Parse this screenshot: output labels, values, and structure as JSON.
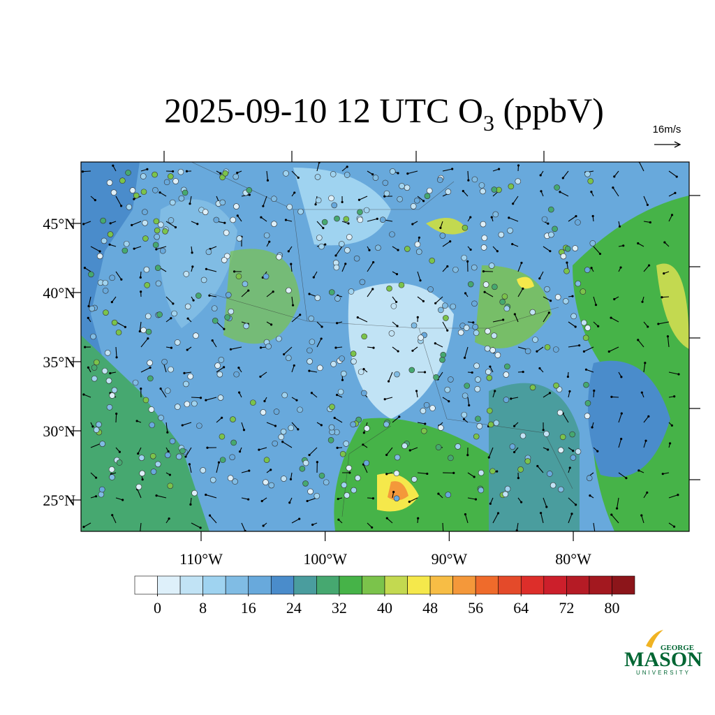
{
  "header": {
    "title_parts": [
      "2025-09-10 12 UTC O",
      "3",
      " (ppbV)"
    ],
    "wind_scale": "16m/s"
  },
  "map": {
    "lon_range": [
      -119.68,
      -70.66
    ],
    "lat_range": [
      22.73,
      49.44
    ],
    "lat_ticks": [
      {
        "value": 45,
        "label": "45°N"
      },
      {
        "value": 40,
        "label": "40°N"
      },
      {
        "value": 35,
        "label": "35°N"
      },
      {
        "value": 30,
        "label": "30°N"
      },
      {
        "value": 25,
        "label": "25°N"
      }
    ],
    "lon_ticks": [
      {
        "value": -110,
        "label": "110°W"
      },
      {
        "value": -100,
        "label": "100°W"
      },
      {
        "value": -90,
        "label": "90°W"
      },
      {
        "value": -80,
        "label": "80°W"
      }
    ]
  },
  "colorbar": {
    "lim": [
      -4,
      84
    ],
    "ticks": [
      0,
      8,
      16,
      24,
      32,
      40,
      48,
      56,
      64,
      72,
      80
    ],
    "colors": [
      "#ffffff",
      "#def0fa",
      "#c1e3f5",
      "#9fd3f0",
      "#80bce4",
      "#68a9dc",
      "#4a8ccb",
      "#4a9d9e",
      "#46a870",
      "#46b348",
      "#7bc34b",
      "#c3d950",
      "#f5e84b",
      "#f7bd45",
      "#f4983a",
      "#ef6b2b",
      "#e44a2a",
      "#dd2e2a",
      "#cc1f2b",
      "#b51b25",
      "#a3181f",
      "#8c151a"
    ]
  },
  "logo": {
    "top": "GEORGE",
    "main": "MASON",
    "bottom": "UNIVERSITY"
  }
}
